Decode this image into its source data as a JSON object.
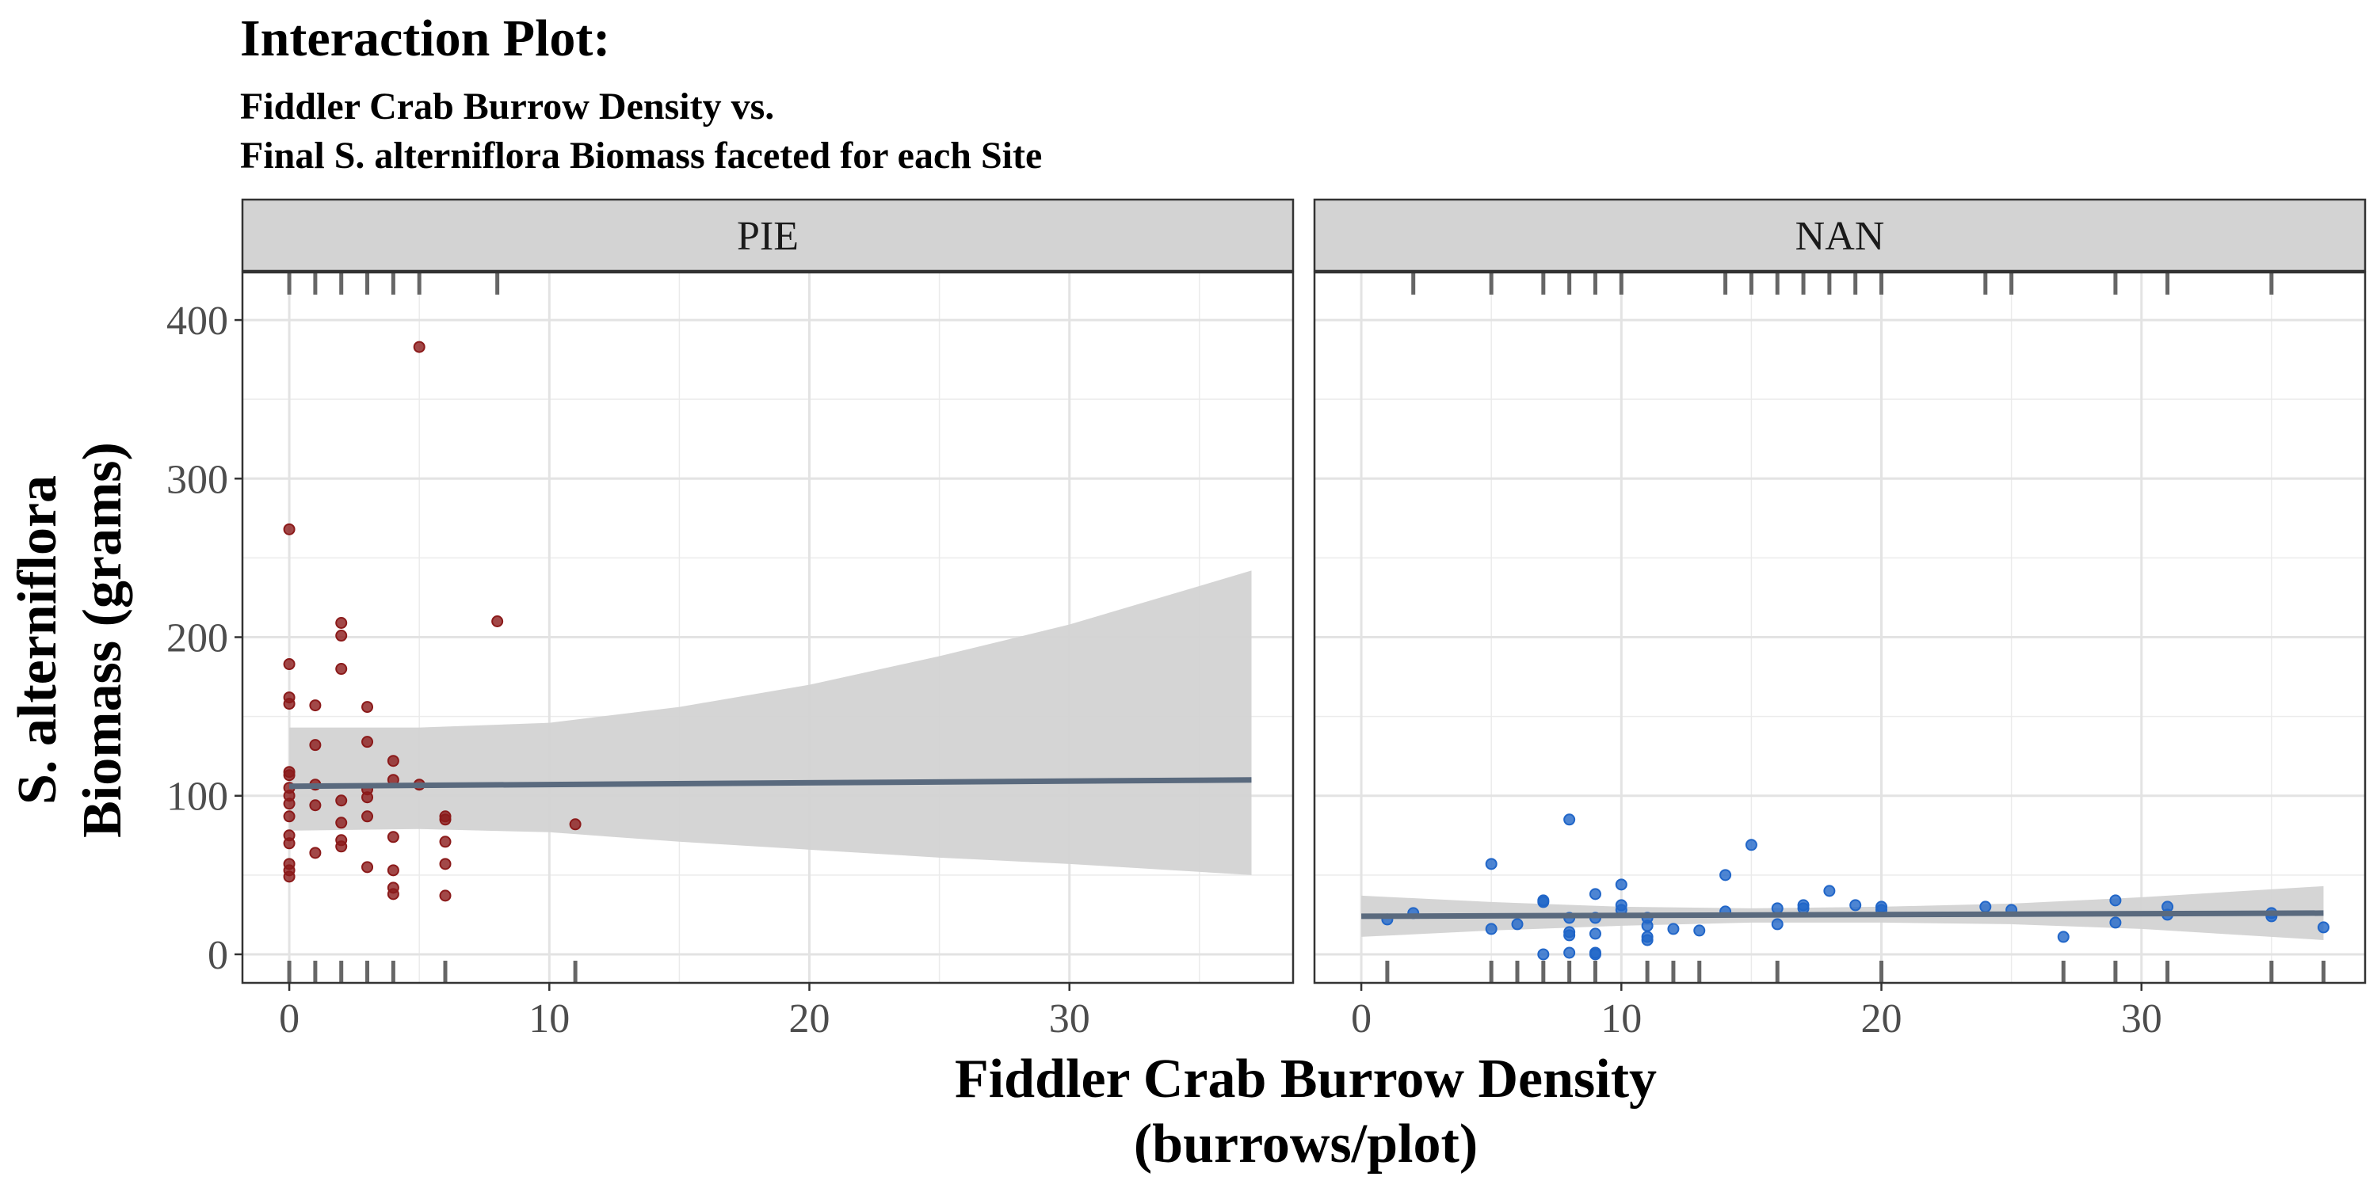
{
  "title": "Interaction Plot:",
  "subtitle_lines": [
    "Fiddler Crab Burrow Density vs.",
    "Final S. alterniflora Biomass faceted for each Site"
  ],
  "xlabel_lines": [
    "Fiddler Crab Burrow Density",
    "(burrows/plot)"
  ],
  "ylabel_lines": [
    "S. alterniflora",
    "Biomass (grams)"
  ],
  "chart_data": {
    "type": "scatter",
    "xlim": [
      -1.8,
      38.6
    ],
    "ylim": [
      -18,
      430
    ],
    "x_ticks": [
      0,
      10,
      20,
      30
    ],
    "y_ticks": [
      0,
      100,
      200,
      300,
      400
    ],
    "grid": true,
    "colors": {
      "PIE": "#8b1a1a",
      "NAN": "#2166c8",
      "fit_line": "#5a6a7e",
      "ci_band": "#d3d3d3",
      "strip": "#d3d3d3"
    },
    "facets": [
      {
        "name": "PIE",
        "points": [
          {
            "x": 0,
            "y": 268
          },
          {
            "x": 0,
            "y": 183
          },
          {
            "x": 0,
            "y": 162
          },
          {
            "x": 0,
            "y": 158
          },
          {
            "x": 0,
            "y": 115
          },
          {
            "x": 0,
            "y": 113
          },
          {
            "x": 0,
            "y": 105
          },
          {
            "x": 0,
            "y": 100
          },
          {
            "x": 0,
            "y": 95
          },
          {
            "x": 0,
            "y": 87
          },
          {
            "x": 0,
            "y": 75
          },
          {
            "x": 0,
            "y": 70
          },
          {
            "x": 0,
            "y": 57
          },
          {
            "x": 0,
            "y": 53
          },
          {
            "x": 0,
            "y": 49
          },
          {
            "x": 1,
            "y": 157
          },
          {
            "x": 1,
            "y": 132
          },
          {
            "x": 1,
            "y": 107
          },
          {
            "x": 1,
            "y": 94
          },
          {
            "x": 1,
            "y": 64
          },
          {
            "x": 2,
            "y": 209
          },
          {
            "x": 2,
            "y": 201
          },
          {
            "x": 2,
            "y": 180
          },
          {
            "x": 2,
            "y": 97
          },
          {
            "x": 2,
            "y": 83
          },
          {
            "x": 2,
            "y": 72
          },
          {
            "x": 2,
            "y": 68
          },
          {
            "x": 3,
            "y": 156
          },
          {
            "x": 3,
            "y": 134
          },
          {
            "x": 3,
            "y": 104
          },
          {
            "x": 3,
            "y": 99
          },
          {
            "x": 3,
            "y": 87
          },
          {
            "x": 3,
            "y": 55
          },
          {
            "x": 4,
            "y": 122
          },
          {
            "x": 4,
            "y": 110
          },
          {
            "x": 4,
            "y": 74
          },
          {
            "x": 4,
            "y": 53
          },
          {
            "x": 4,
            "y": 42
          },
          {
            "x": 4,
            "y": 38
          },
          {
            "x": 5,
            "y": 383
          },
          {
            "x": 5,
            "y": 107
          },
          {
            "x": 6,
            "y": 87
          },
          {
            "x": 6,
            "y": 85
          },
          {
            "x": 6,
            "y": 71
          },
          {
            "x": 6,
            "y": 57
          },
          {
            "x": 6,
            "y": 37
          },
          {
            "x": 8,
            "y": 210
          },
          {
            "x": 11,
            "y": 82
          }
        ],
        "fit": {
          "x": [
            0,
            37
          ],
          "y": [
            106,
            110
          ]
        },
        "ci": {
          "x": [
            0,
            5,
            10,
            15,
            20,
            25,
            30,
            37
          ],
          "upper": [
            143,
            143,
            146,
            156,
            170,
            188,
            208,
            242
          ],
          "lower": [
            78,
            79,
            77,
            71,
            66,
            61,
            57,
            50
          ]
        },
        "rug_top": [
          0,
          1,
          2,
          3,
          4,
          5,
          8
        ],
        "rug_bottom": [
          0,
          1,
          2,
          3,
          4,
          6,
          11
        ]
      },
      {
        "name": "NAN",
        "points": [
          {
            "x": 1,
            "y": 22
          },
          {
            "x": 2,
            "y": 26
          },
          {
            "x": 5,
            "y": 57
          },
          {
            "x": 5,
            "y": 16
          },
          {
            "x": 6,
            "y": 19
          },
          {
            "x": 7,
            "y": 34
          },
          {
            "x": 7,
            "y": 33
          },
          {
            "x": 7,
            "y": 0
          },
          {
            "x": 8,
            "y": 85
          },
          {
            "x": 8,
            "y": 23
          },
          {
            "x": 8,
            "y": 14
          },
          {
            "x": 8,
            "y": 12
          },
          {
            "x": 8,
            "y": 1
          },
          {
            "x": 9,
            "y": 38
          },
          {
            "x": 9,
            "y": 23
          },
          {
            "x": 9,
            "y": 13
          },
          {
            "x": 9,
            "y": 1
          },
          {
            "x": 9,
            "y": 0
          },
          {
            "x": 10,
            "y": 44
          },
          {
            "x": 10,
            "y": 31
          },
          {
            "x": 10,
            "y": 28
          },
          {
            "x": 11,
            "y": 23
          },
          {
            "x": 11,
            "y": 18
          },
          {
            "x": 11,
            "y": 11
          },
          {
            "x": 11,
            "y": 9
          },
          {
            "x": 12,
            "y": 16
          },
          {
            "x": 13,
            "y": 15
          },
          {
            "x": 14,
            "y": 50
          },
          {
            "x": 14,
            "y": 27
          },
          {
            "x": 15,
            "y": 69
          },
          {
            "x": 16,
            "y": 29
          },
          {
            "x": 16,
            "y": 19
          },
          {
            "x": 17,
            "y": 31
          },
          {
            "x": 17,
            "y": 29
          },
          {
            "x": 18,
            "y": 40
          },
          {
            "x": 19,
            "y": 31
          },
          {
            "x": 20,
            "y": 30
          },
          {
            "x": 20,
            "y": 28
          },
          {
            "x": 24,
            "y": 30
          },
          {
            "x": 25,
            "y": 28
          },
          {
            "x": 27,
            "y": 11
          },
          {
            "x": 29,
            "y": 34
          },
          {
            "x": 29,
            "y": 20
          },
          {
            "x": 31,
            "y": 30
          },
          {
            "x": 31,
            "y": 25
          },
          {
            "x": 35,
            "y": 26
          },
          {
            "x": 35,
            "y": 24
          },
          {
            "x": 37,
            "y": 17
          }
        ],
        "fit": {
          "x": [
            0,
            37
          ],
          "y": [
            24,
            26
          ]
        },
        "ci": {
          "x": [
            0,
            5,
            10,
            15,
            20,
            25,
            30,
            37
          ],
          "upper": [
            37,
            33,
            30,
            29,
            30,
            32,
            36,
            43
          ],
          "lower": [
            11,
            15,
            18,
            20,
            20,
            19,
            16,
            9
          ]
        },
        "rug_top": [
          2,
          5,
          7,
          8,
          9,
          10,
          14,
          15,
          16,
          17,
          18,
          19,
          20,
          24,
          25,
          29,
          31,
          35
        ],
        "rug_bottom": [
          1,
          5,
          6,
          7,
          8,
          9,
          11,
          12,
          13,
          16,
          20,
          27,
          29,
          31,
          35,
          37
        ]
      }
    ]
  }
}
